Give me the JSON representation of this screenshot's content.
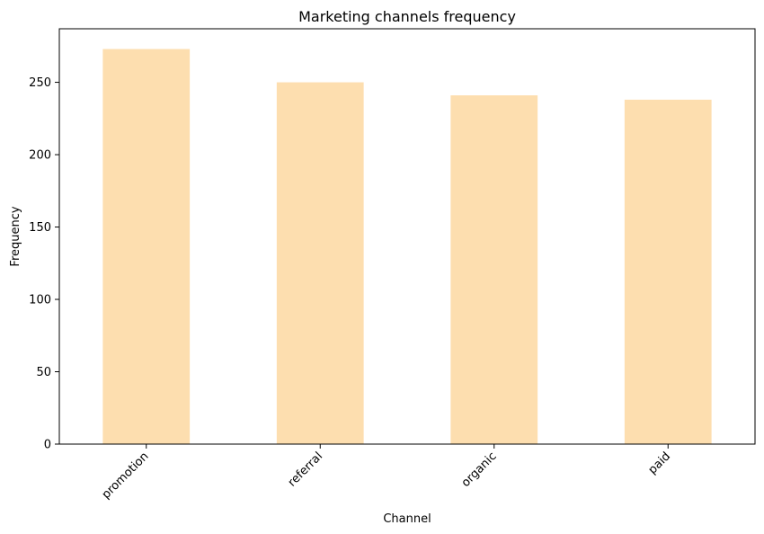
{
  "chart_data": {
    "type": "bar",
    "title": "Marketing channels frequency",
    "xlabel": "Channel",
    "ylabel": "Frequency",
    "categories": [
      "promotion",
      "referral",
      "organic",
      "paid"
    ],
    "values": [
      273,
      250,
      241,
      238
    ],
    "ylim": [
      0,
      287
    ],
    "yticks": [
      0,
      50,
      100,
      150,
      200,
      250
    ],
    "bar_color": "#fddeaf",
    "grid": false,
    "legend": "none",
    "xtick_rotation_deg": 45
  }
}
